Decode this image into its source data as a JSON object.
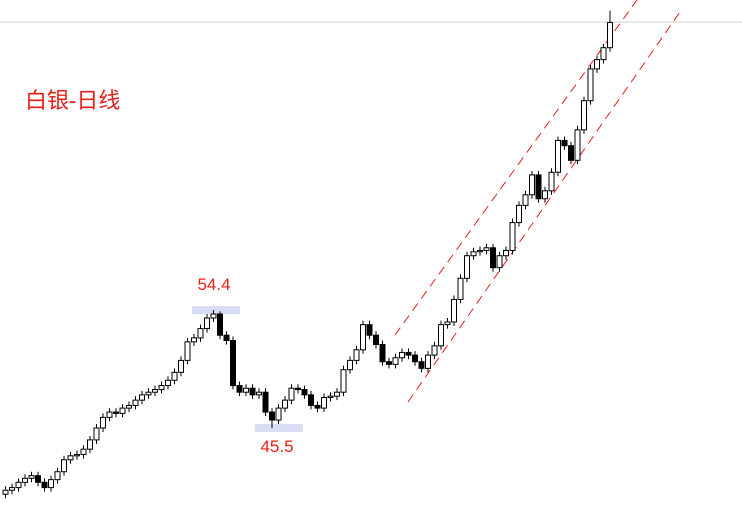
{
  "chart_data": {
    "type": "candlestick",
    "title": "白银-日线",
    "ylim": [
      37.8,
      77.8
    ],
    "up_color": "#ffffff",
    "down_color": "#000000",
    "title_color": "#e8201a",
    "open": [
      40.5,
      40.8,
      41.0,
      41.4,
      41.7,
      41.9,
      41.4,
      41.0,
      41.6,
      42.2,
      43.1,
      43.4,
      43.5,
      43.9,
      44.6,
      45.5,
      46.3,
      46.7,
      46.6,
      47.0,
      47.2,
      47.6,
      48.0,
      48.2,
      48.4,
      48.7,
      49.1,
      49.7,
      50.6,
      52.0,
      52.3,
      53.0,
      53.8,
      54.1,
      52.5,
      52.1,
      48.7,
      48.2,
      48.5,
      48.0,
      48.2,
      46.7,
      46.1,
      47.0,
      47.6,
      48.5,
      48.4,
      48.0,
      47.2,
      47.0,
      47.8,
      47.9,
      48.2,
      49.9,
      50.6,
      51.4,
      53.3,
      52.5,
      51.8,
      50.5,
      50.3,
      50.8,
      51.2,
      51.0,
      50.5,
      50.0,
      51.0,
      51.7,
      53.3,
      53.5,
      55.2,
      56.8,
      58.5,
      58.8,
      58.9,
      59.1,
      57.6,
      58.5,
      58.9,
      61.0,
      62.3,
      63.1,
      64.6,
      62.8,
      63.4,
      64.8,
      67.2,
      66.8,
      65.7,
      68.0,
      70.2,
      72.6,
      73.3,
      74.2
    ],
    "high": [
      41.1,
      41.3,
      41.7,
      42.0,
      42.2,
      42.2,
      41.7,
      41.9,
      42.5,
      43.4,
      43.7,
      43.8,
      44.2,
      44.9,
      45.8,
      46.6,
      47.0,
      47.0,
      47.3,
      47.5,
      47.9,
      48.3,
      48.5,
      48.7,
      49.0,
      49.4,
      50.0,
      50.9,
      52.3,
      52.6,
      53.3,
      54.1,
      54.4,
      54.3,
      52.8,
      52.4,
      49.0,
      48.8,
      48.8,
      48.5,
      48.5,
      47.0,
      47.3,
      47.9,
      48.8,
      48.8,
      48.7,
      48.3,
      47.5,
      48.1,
      48.2,
      48.5,
      50.2,
      50.9,
      51.7,
      53.6,
      53.6,
      52.8,
      52.1,
      50.8,
      51.1,
      51.5,
      51.5,
      51.3,
      50.8,
      51.3,
      52.0,
      53.6,
      53.8,
      55.5,
      57.1,
      58.8,
      59.1,
      59.2,
      59.4,
      59.4,
      58.8,
      59.2,
      61.3,
      62.6,
      63.4,
      64.9,
      64.9,
      63.7,
      65.1,
      67.5,
      67.5,
      67.1,
      68.3,
      70.5,
      72.9,
      73.6,
      74.5,
      77.0
    ],
    "low": [
      40.2,
      40.5,
      40.7,
      41.1,
      41.4,
      41.1,
      40.7,
      40.7,
      41.3,
      41.9,
      42.8,
      43.1,
      43.2,
      43.6,
      44.3,
      45.2,
      46.0,
      46.3,
      46.3,
      46.7,
      46.9,
      47.3,
      47.7,
      47.9,
      48.1,
      48.4,
      48.8,
      49.4,
      50.3,
      51.7,
      52.0,
      52.7,
      53.5,
      52.2,
      51.8,
      48.4,
      47.9,
      47.9,
      47.7,
      47.7,
      46.4,
      45.5,
      45.8,
      46.7,
      47.3,
      48.1,
      47.7,
      46.9,
      46.7,
      46.7,
      47.5,
      47.6,
      47.9,
      49.6,
      50.3,
      51.1,
      52.2,
      51.5,
      50.2,
      50.0,
      50.0,
      50.5,
      50.7,
      50.2,
      49.7,
      49.7,
      50.7,
      51.4,
      53.0,
      53.2,
      54.9,
      56.5,
      58.2,
      58.5,
      58.6,
      57.3,
      57.3,
      58.2,
      58.6,
      60.7,
      62.0,
      62.8,
      62.5,
      62.5,
      63.1,
      64.5,
      66.5,
      65.4,
      65.4,
      67.7,
      69.9,
      72.3,
      73.0,
      73.9
    ],
    "close": [
      40.8,
      41.0,
      41.4,
      41.7,
      41.9,
      41.4,
      41.0,
      41.6,
      42.2,
      43.1,
      43.4,
      43.5,
      43.9,
      44.6,
      45.5,
      46.3,
      46.7,
      46.6,
      47.0,
      47.2,
      47.6,
      48.0,
      48.2,
      48.4,
      48.7,
      49.1,
      49.7,
      50.6,
      52.0,
      52.3,
      53.0,
      53.8,
      54.1,
      52.5,
      52.1,
      48.7,
      48.2,
      48.5,
      48.0,
      48.2,
      46.7,
      46.1,
      47.0,
      47.6,
      48.5,
      48.4,
      48.0,
      47.2,
      47.0,
      47.8,
      47.9,
      48.2,
      49.9,
      50.6,
      51.4,
      53.3,
      52.5,
      51.8,
      50.5,
      50.3,
      50.8,
      51.2,
      51.0,
      50.5,
      50.0,
      51.0,
      51.7,
      53.3,
      53.5,
      55.2,
      56.8,
      58.5,
      58.8,
      58.9,
      59.1,
      57.6,
      58.5,
      58.9,
      61.0,
      62.3,
      63.1,
      64.6,
      62.8,
      63.4,
      64.8,
      67.2,
      66.8,
      65.7,
      68.0,
      70.2,
      72.6,
      73.3,
      74.2,
      76.1
    ],
    "annotations": [
      54.4,
      45.5
    ]
  }
}
